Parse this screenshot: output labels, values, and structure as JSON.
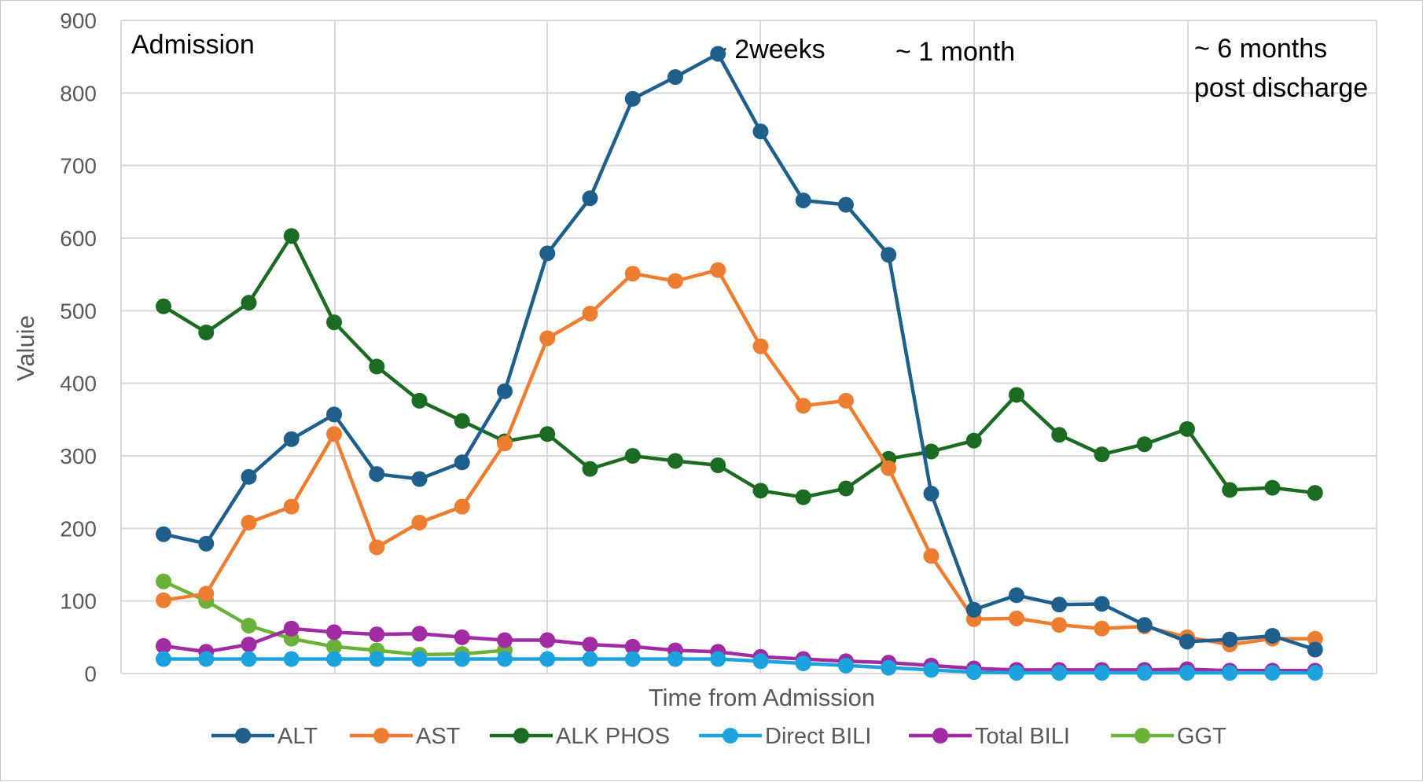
{
  "chart_data": {
    "type": "line",
    "xlabel": "Time from Admission",
    "ylabel": "Valuie",
    "ylim": [
      0,
      900
    ],
    "yticks": [
      "0",
      "100",
      "200",
      "300",
      "400",
      "500",
      "600",
      "700",
      "800",
      "900"
    ],
    "grid": true,
    "legend_placement": "bottom",
    "point_count": 28,
    "annotations": [
      {
        "lines": [
          "Admission"
        ],
        "at_index": 0
      },
      {
        "lines": [
          "~ 2weeks"
        ],
        "at_index": 13
      },
      {
        "lines": [
          "~ 1 month"
        ],
        "at_index": 17
      },
      {
        "lines": [
          "~ 6 months",
          "post discharge"
        ],
        "at_index": 24
      }
    ],
    "series": [
      {
        "name": "ALT",
        "color": "#1F5F8B",
        "values": [
          192,
          179,
          271,
          323,
          357,
          275,
          268,
          291,
          389,
          579,
          655,
          792,
          822,
          854,
          747,
          652,
          646,
          577,
          248,
          88,
          108,
          95,
          96,
          67,
          44,
          47,
          52,
          33
        ]
      },
      {
        "name": "AST",
        "color": "#ED7D31",
        "values": [
          101,
          110,
          208,
          230,
          330,
          174,
          208,
          230,
          317,
          462,
          496,
          551,
          541,
          556,
          451,
          369,
          376,
          283,
          162,
          75,
          76,
          67,
          62,
          65,
          50,
          40,
          48,
          48
        ]
      },
      {
        "name": "ALK PHOS",
        "color": "#1B6B23",
        "values": [
          506,
          470,
          511,
          603,
          484,
          423,
          376,
          348,
          320,
          330,
          282,
          300,
          293,
          287,
          252,
          243,
          255,
          296,
          306,
          321,
          384,
          329,
          302,
          316,
          337,
          253,
          256,
          249
        ]
      },
      {
        "name": "Direct BILI",
        "color": "#1CA3DE",
        "values": [
          20,
          20,
          20,
          20,
          20,
          20,
          20,
          20,
          20,
          20,
          20,
          20,
          20,
          20,
          17,
          14,
          11,
          8,
          5,
          2,
          1,
          1,
          1,
          1,
          1,
          1,
          1,
          1
        ]
      },
      {
        "name": "Total BILI",
        "color": "#A02BA3",
        "values": [
          38,
          30,
          40,
          62,
          57,
          54,
          55,
          50,
          46,
          46,
          40,
          37,
          32,
          30,
          23,
          20,
          17,
          15,
          11,
          7,
          5,
          5,
          5,
          5,
          6,
          4,
          4,
          4
        ]
      },
      {
        "name": "GGT",
        "color": "#6BB23A",
        "values": [
          127,
          100,
          66,
          48,
          37,
          32,
          26,
          27,
          32,
          null,
          null,
          null,
          null,
          null,
          null,
          null,
          null,
          null,
          null,
          null,
          null,
          null,
          null,
          null,
          null,
          null,
          null,
          null
        ]
      }
    ]
  }
}
